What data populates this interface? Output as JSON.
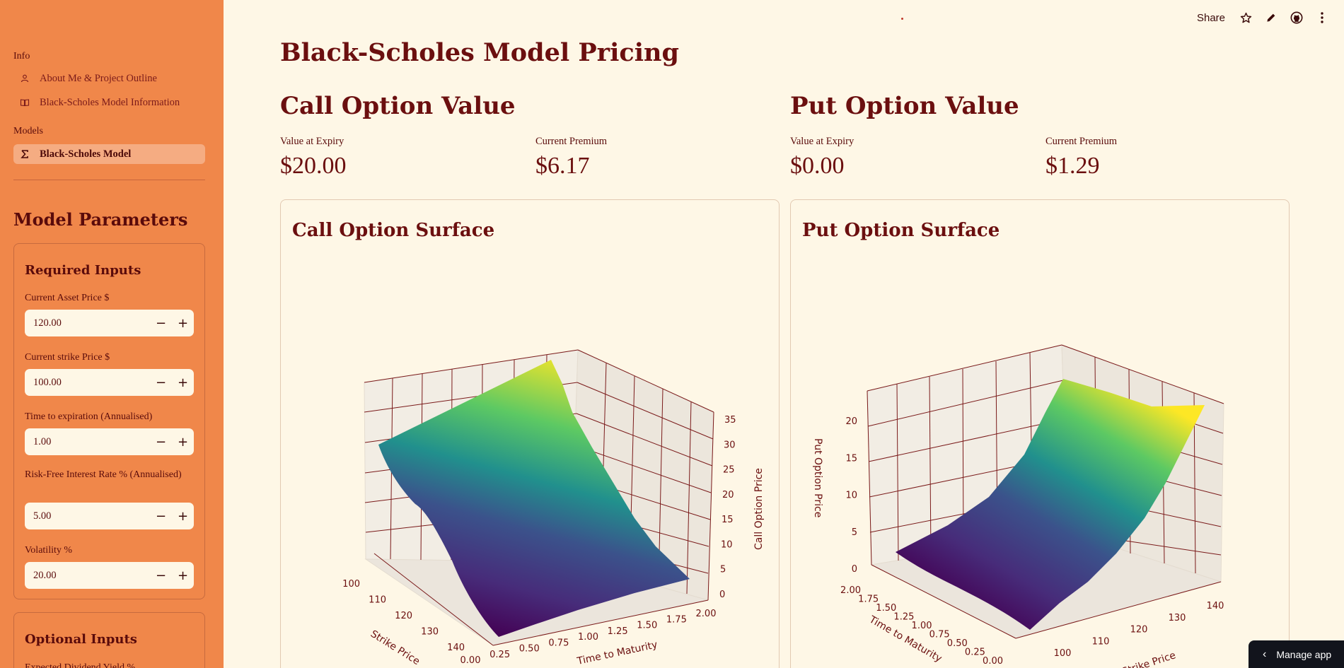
{
  "sidebar": {
    "info_label": "Info",
    "info_items": [
      {
        "label": "About Me & Project Outline",
        "icon": "person-icon"
      },
      {
        "label": "Black-Scholes Model Information",
        "icon": "book-icon"
      }
    ],
    "models_label": "Models",
    "model_items": [
      {
        "label": "Black-Scholes Model",
        "icon": "sigma-icon",
        "active": true
      }
    ],
    "params_header": "Model Parameters",
    "required": {
      "title": "Required Inputs",
      "fields": [
        {
          "label": "Current Asset Price $",
          "value": "120.00"
        },
        {
          "label": "Current strike Price $",
          "value": "100.00"
        },
        {
          "label": "Time to expiration (Annualised)",
          "value": "1.00"
        },
        {
          "label": "Risk-Free Interest Rate % (Annualised)",
          "value": "5.00"
        },
        {
          "label": "Volatility %",
          "value": "20.00"
        }
      ],
      "minus": "−",
      "plus": "+"
    },
    "optional": {
      "title": "Optional Inputs",
      "first_label": "Expected Dividend Yield %"
    }
  },
  "toolbar": {
    "share_label": "Share"
  },
  "main": {
    "title": "Black-Scholes Model Pricing",
    "call": {
      "title": "Call Option Value",
      "expiry_label": "Value at Expiry",
      "expiry_value": "$20.00",
      "premium_label": "Current Premium",
      "premium_value": "$6.17",
      "surface_title": "Call Option Surface"
    },
    "put": {
      "title": "Put Option Value",
      "expiry_label": "Value at Expiry",
      "expiry_value": "$0.00",
      "premium_label": "Current Premium",
      "premium_value": "$1.29",
      "surface_title": "Put Option Surface"
    }
  },
  "manage_app_label": "Manage app",
  "chart_data": [
    {
      "type": "surface",
      "title": "Call Option Surface",
      "xlabel": "Strike Price",
      "ylabel": "Time to Maturity",
      "zlabel": "Call Option Price",
      "x_ticks": [
        "100",
        "110",
        "120",
        "130",
        "140"
      ],
      "y_ticks": [
        "0.00",
        "0.25",
        "0.50",
        "0.75",
        "1.00",
        "1.25",
        "1.50",
        "1.75",
        "2.00"
      ],
      "z_ticks": [
        "0",
        "5",
        "10",
        "15",
        "20",
        "25",
        "30",
        "35"
      ],
      "colormap": "viridis",
      "z_range": [
        0,
        35
      ]
    },
    {
      "type": "surface",
      "title": "Put Option Surface",
      "xlabel": "Strike Price",
      "ylabel": "Time to Maturity",
      "zlabel": "Put Option Price",
      "x_ticks": [
        "100",
        "110",
        "120",
        "130",
        "140"
      ],
      "y_ticks": [
        "2.00",
        "1.75",
        "1.50",
        "1.25",
        "1.00",
        "0.75",
        "0.50",
        "0.25",
        "0.00"
      ],
      "z_ticks": [
        "0",
        "5",
        "10",
        "15",
        "20"
      ],
      "colormap": "viridis",
      "z_range": [
        0,
        22
      ]
    }
  ]
}
